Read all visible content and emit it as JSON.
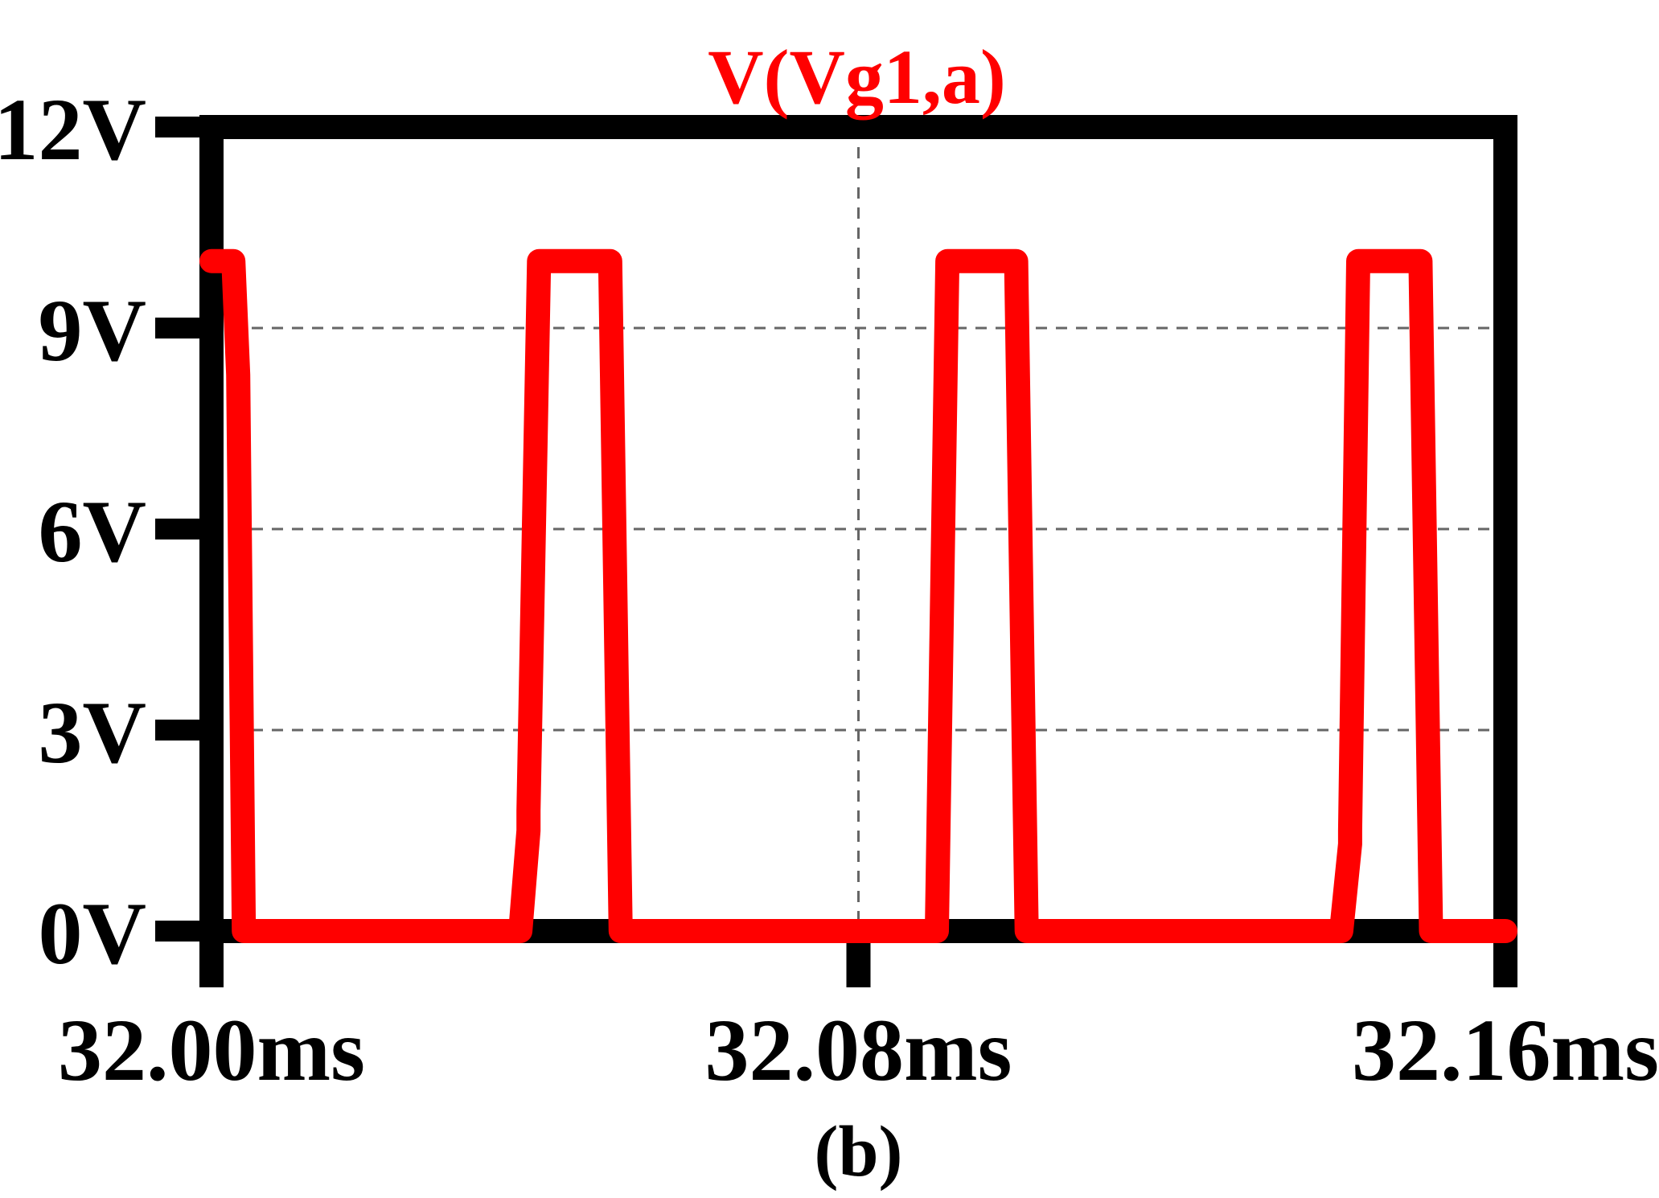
{
  "chart_data": {
    "type": "line",
    "title": "V(Vg1,a)",
    "caption": "(b)",
    "xlabel": "",
    "ylabel": "",
    "x_unit": "ms",
    "y_unit": "V",
    "xlim": [
      32.0,
      32.16
    ],
    "ylim": [
      0,
      12
    ],
    "grid": true,
    "x_ticks": [
      "32.00ms",
      "32.08ms",
      "32.16ms"
    ],
    "x_tick_values": [
      32.0,
      32.08,
      32.16
    ],
    "y_ticks": [
      "0V",
      "3V",
      "6V",
      "9V",
      "12V"
    ],
    "y_tick_values": [
      0,
      3,
      6,
      9,
      12
    ],
    "colors": {
      "series": "#ff0000",
      "frame": "#000000",
      "grid": "#666666",
      "title": "#ff0000"
    },
    "series": [
      {
        "name": "V(Vg1,a)",
        "x": [
          32.0,
          32.0027,
          32.0033,
          32.004,
          32.0382,
          32.0392,
          32.0392,
          32.0405,
          32.0493,
          32.0506,
          32.0897,
          32.091,
          32.0995,
          32.1008,
          32.1397,
          32.1408,
          32.1408,
          32.1418,
          32.1495,
          32.1508,
          32.16
        ],
        "y": [
          10.0,
          10.0,
          8.3,
          0.0,
          0.0,
          1.5,
          1.8,
          10.0,
          10.0,
          0.0,
          0.0,
          10.0,
          10.0,
          0.0,
          0.0,
          1.3,
          1.5,
          10.0,
          10.0,
          0.0,
          0.0
        ]
      }
    ]
  }
}
